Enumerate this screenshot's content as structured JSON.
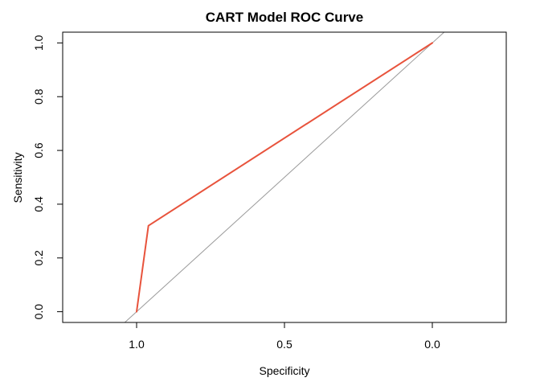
{
  "chart_data": {
    "type": "line",
    "title": "CART Model ROC Curve",
    "xlabel": "Specificity",
    "ylabel": "Sensitivity",
    "x_reversed": true,
    "xlim": [
      1.25,
      -0.25
    ],
    "ylim": [
      -0.04,
      1.04
    ],
    "x_ticks": [
      1.0,
      0.5,
      0.0
    ],
    "x_tick_labels": [
      "1.0",
      "0.5",
      "0.0"
    ],
    "y_ticks": [
      0.0,
      0.2,
      0.4,
      0.6,
      0.8,
      1.0
    ],
    "y_tick_labels": [
      "0.0",
      "0.2",
      "0.4",
      "0.6",
      "0.8",
      "1.0"
    ],
    "grid": false,
    "series": [
      {
        "specificity": [
          1.0,
          0.96,
          0.0
        ],
        "sensitivity": [
          0.0,
          0.32,
          1.0
        ],
        "color": "#E8533C"
      }
    ],
    "reference_line": {
      "description": "diagonal sensitivity = 1 - specificity",
      "color": "#9A9A9A"
    }
  }
}
